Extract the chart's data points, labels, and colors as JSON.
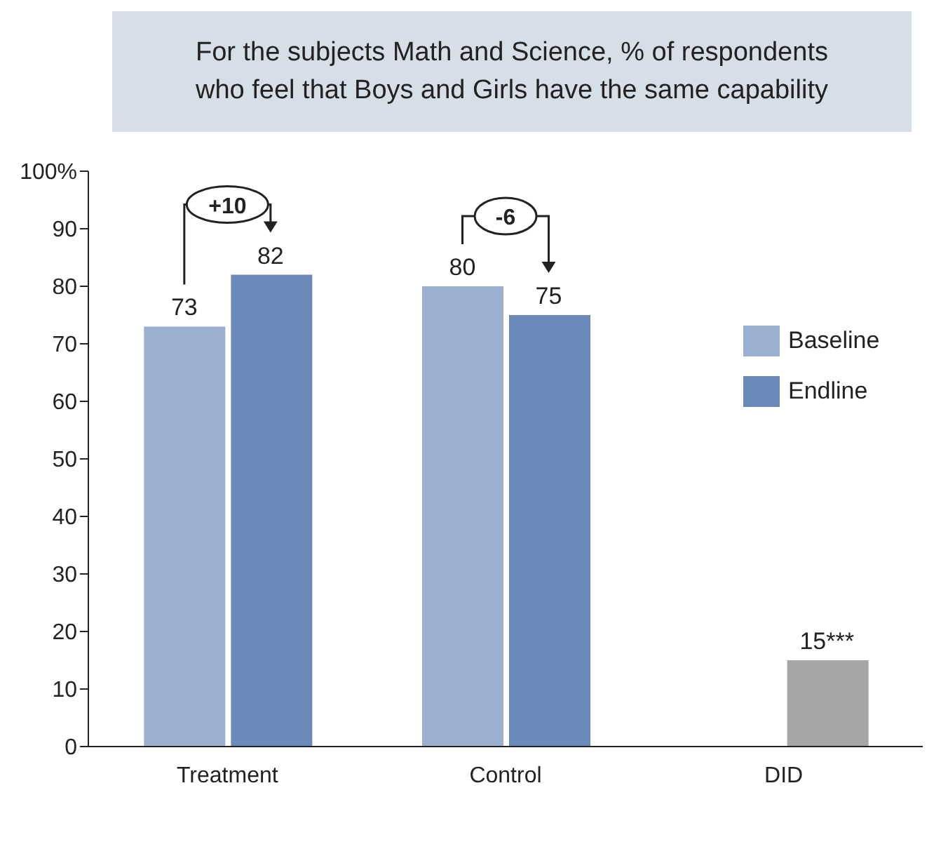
{
  "chart_data": {
    "type": "bar",
    "title": "For the subjects Math and Science, % of respondents who feel that Boys and Girls have the same capability",
    "categories": [
      "Treatment",
      "Control",
      "DID"
    ],
    "series": [
      {
        "name": "Baseline",
        "color": "#9bafd0",
        "values": [
          73,
          80,
          null
        ],
        "value_labels": [
          "73",
          "80",
          null
        ]
      },
      {
        "name": "Endline",
        "color": "#6b8aba",
        "values": [
          82,
          75,
          null
        ],
        "value_labels": [
          "82",
          "75",
          null
        ]
      },
      {
        "color": "#a6a6a6",
        "values": [
          null,
          null,
          15
        ],
        "value_labels": [
          null,
          null,
          "15***"
        ]
      }
    ],
    "annotations": [
      "+10",
      "-6"
    ],
    "ylim": [
      0,
      100
    ],
    "yticks": [
      0,
      10,
      20,
      30,
      40,
      50,
      60,
      70,
      80,
      90,
      {
        "value": 100,
        "label": "100%"
      }
    ],
    "grid": false,
    "legend": "right"
  }
}
